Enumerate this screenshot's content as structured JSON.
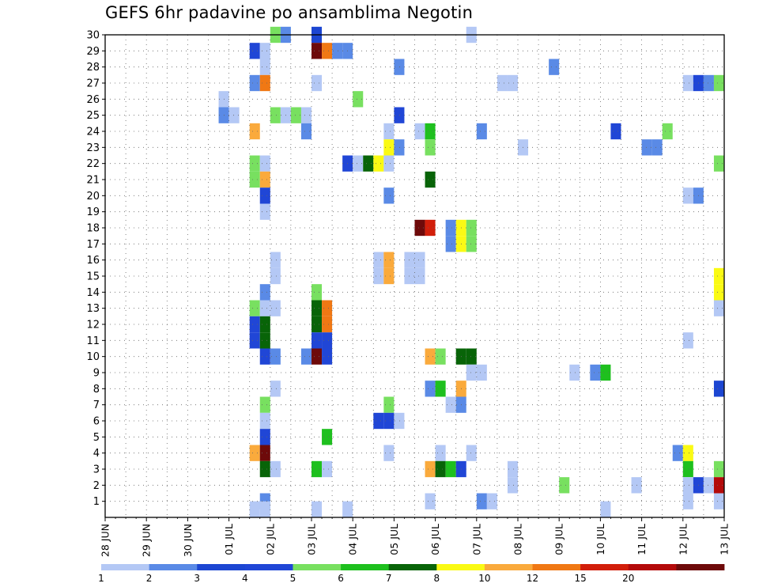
{
  "chart_data": {
    "type": "heatmap",
    "title": "GEFS 6hr padavine po ansamblima Negotin",
    "xlabel": "",
    "ylabel": "",
    "x_ticks": [
      "28 JUN",
      "29 JUN",
      "30 JUN",
      "01 JUL",
      "02 JUL",
      "03 JUL",
      "04 JUL",
      "05 JUL",
      "06 JUL",
      "07 JUL",
      "08 JUL",
      "09 JUL",
      "10 JUL",
      "11 JUL",
      "12 JUL",
      "13 JUL"
    ],
    "x_unit": "6-hour step from 28 JUN 00Z",
    "xlim": [
      0,
      60
    ],
    "y_ticks": [
      1,
      2,
      3,
      4,
      5,
      6,
      7,
      8,
      9,
      10,
      11,
      12,
      13,
      14,
      15,
      16,
      17,
      18,
      19,
      20,
      21,
      22,
      23,
      24,
      25,
      26,
      27,
      28,
      29,
      30
    ],
    "ylim": [
      0,
      30
    ],
    "grid": true,
    "legend_position": "bottom",
    "color_levels": [
      1,
      2,
      3,
      4,
      5,
      6,
      7,
      8,
      10,
      12,
      15,
      20
    ],
    "color_bins": [
      "#b4c8f5",
      "#5a8ae6",
      "#1c46d2",
      "#2046d6",
      "#78e060",
      "#1ec01e",
      "#086408",
      "#fafa14",
      "#faaa3c",
      "#f07814",
      "#d21e0a",
      "#b40a0a",
      "#6e0a0a"
    ],
    "cells": [
      {
        "m": 30,
        "x": 16,
        "c": 4
      },
      {
        "m": 30,
        "x": 17,
        "c": 1
      },
      {
        "m": 30,
        "x": 20,
        "c": 2
      },
      {
        "m": 30,
        "x": 35,
        "c": 0
      },
      {
        "m": 29,
        "x": 14,
        "c": 3
      },
      {
        "m": 29,
        "x": 15,
        "c": 0
      },
      {
        "m": 29,
        "x": 20,
        "c": 12
      },
      {
        "m": 29,
        "x": 21,
        "c": 9
      },
      {
        "m": 29,
        "x": 22,
        "c": 1
      },
      {
        "m": 29,
        "x": 23,
        "c": 1
      },
      {
        "m": 28,
        "x": 15,
        "c": 0
      },
      {
        "m": 28,
        "x": 28,
        "c": 1
      },
      {
        "m": 28,
        "x": 43,
        "c": 1
      },
      {
        "m": 27,
        "x": 14,
        "c": 1
      },
      {
        "m": 27,
        "x": 15,
        "c": 9
      },
      {
        "m": 27,
        "x": 20,
        "c": 0
      },
      {
        "m": 27,
        "x": 38,
        "c": 0
      },
      {
        "m": 27,
        "x": 39,
        "c": 0
      },
      {
        "m": 27,
        "x": 56,
        "c": 0
      },
      {
        "m": 27,
        "x": 57,
        "c": 3
      },
      {
        "m": 27,
        "x": 58,
        "c": 1
      },
      {
        "m": 27,
        "x": 59,
        "c": 4
      },
      {
        "m": 26,
        "x": 11,
        "c": 0
      },
      {
        "m": 26,
        "x": 24,
        "c": 4
      },
      {
        "m": 25,
        "x": 11,
        "c": 1
      },
      {
        "m": 25,
        "x": 12,
        "c": 0
      },
      {
        "m": 25,
        "x": 16,
        "c": 4
      },
      {
        "m": 25,
        "x": 17,
        "c": 0
      },
      {
        "m": 25,
        "x": 18,
        "c": 4
      },
      {
        "m": 25,
        "x": 19,
        "c": 0
      },
      {
        "m": 25,
        "x": 28,
        "c": 3
      },
      {
        "m": 24,
        "x": 14,
        "c": 8
      },
      {
        "m": 24,
        "x": 19,
        "c": 1
      },
      {
        "m": 24,
        "x": 27,
        "c": 0
      },
      {
        "m": 24,
        "x": 30,
        "c": 0
      },
      {
        "m": 24,
        "x": 31,
        "c": 5
      },
      {
        "m": 24,
        "x": 36,
        "c": 1
      },
      {
        "m": 24,
        "x": 49,
        "c": 3
      },
      {
        "m": 24,
        "x": 54,
        "c": 4
      },
      {
        "m": 23,
        "x": 27,
        "c": 7
      },
      {
        "m": 23,
        "x": 28,
        "c": 1
      },
      {
        "m": 23,
        "x": 31,
        "c": 4
      },
      {
        "m": 23,
        "x": 40,
        "c": 0
      },
      {
        "m": 23,
        "x": 52,
        "c": 1
      },
      {
        "m": 23,
        "x": 53,
        "c": 1
      },
      {
        "m": 22,
        "x": 14,
        "c": 4
      },
      {
        "m": 22,
        "x": 15,
        "c": 0
      },
      {
        "m": 22,
        "x": 23,
        "c": 3
      },
      {
        "m": 22,
        "x": 24,
        "c": 0
      },
      {
        "m": 22,
        "x": 25,
        "c": 6
      },
      {
        "m": 22,
        "x": 26,
        "c": 7
      },
      {
        "m": 22,
        "x": 27,
        "c": 0
      },
      {
        "m": 22,
        "x": 59,
        "c": 4
      },
      {
        "m": 21,
        "x": 14,
        "c": 4
      },
      {
        "m": 21,
        "x": 15,
        "c": 8
      },
      {
        "m": 21,
        "x": 31,
        "c": 6
      },
      {
        "m": 20,
        "x": 15,
        "c": 3
      },
      {
        "m": 20,
        "x": 27,
        "c": 1
      },
      {
        "m": 20,
        "x": 56,
        "c": 0
      },
      {
        "m": 20,
        "x": 57,
        "c": 1
      },
      {
        "m": 19,
        "x": 15,
        "c": 0
      },
      {
        "m": 18,
        "x": 30,
        "c": 12
      },
      {
        "m": 18,
        "x": 31,
        "c": 10
      },
      {
        "m": 18,
        "x": 33,
        "c": 1
      },
      {
        "m": 18,
        "x": 34,
        "c": 7
      },
      {
        "m": 18,
        "x": 35,
        "c": 4
      },
      {
        "m": 17,
        "x": 33,
        "c": 1
      },
      {
        "m": 17,
        "x": 34,
        "c": 7
      },
      {
        "m": 17,
        "x": 35,
        "c": 4
      },
      {
        "m": 16,
        "x": 16,
        "c": 0
      },
      {
        "m": 16,
        "x": 26,
        "c": 0
      },
      {
        "m": 16,
        "x": 27,
        "c": 8
      },
      {
        "m": 16,
        "x": 29,
        "c": 0
      },
      {
        "m": 16,
        "x": 30,
        "c": 0
      },
      {
        "m": 15,
        "x": 16,
        "c": 0
      },
      {
        "m": 15,
        "x": 26,
        "c": 0
      },
      {
        "m": 15,
        "x": 27,
        "c": 8
      },
      {
        "m": 15,
        "x": 29,
        "c": 0
      },
      {
        "m": 15,
        "x": 30,
        "c": 0
      },
      {
        "m": 15,
        "x": 59,
        "c": 7
      },
      {
        "m": 14,
        "x": 15,
        "c": 1
      },
      {
        "m": 14,
        "x": 20,
        "c": 4
      },
      {
        "m": 14,
        "x": 59,
        "c": 7
      },
      {
        "m": 13,
        "x": 14,
        "c": 4
      },
      {
        "m": 13,
        "x": 15,
        "c": 0
      },
      {
        "m": 13,
        "x": 16,
        "c": 0
      },
      {
        "m": 13,
        "x": 20,
        "c": 6
      },
      {
        "m": 13,
        "x": 21,
        "c": 9
      },
      {
        "m": 13,
        "x": 59,
        "c": 0
      },
      {
        "m": 12,
        "x": 14,
        "c": 3
      },
      {
        "m": 12,
        "x": 15,
        "c": 6
      },
      {
        "m": 12,
        "x": 20,
        "c": 6
      },
      {
        "m": 12,
        "x": 21,
        "c": 9
      },
      {
        "m": 11,
        "x": 14,
        "c": 3
      },
      {
        "m": 11,
        "x": 15,
        "c": 6
      },
      {
        "m": 11,
        "x": 20,
        "c": 3
      },
      {
        "m": 11,
        "x": 21,
        "c": 3
      },
      {
        "m": 11,
        "x": 56,
        "c": 0
      },
      {
        "m": 10,
        "x": 15,
        "c": 3
      },
      {
        "m": 10,
        "x": 16,
        "c": 1
      },
      {
        "m": 10,
        "x": 19,
        "c": 1
      },
      {
        "m": 10,
        "x": 20,
        "c": 12
      },
      {
        "m": 10,
        "x": 21,
        "c": 3
      },
      {
        "m": 10,
        "x": 31,
        "c": 8
      },
      {
        "m": 10,
        "x": 32,
        "c": 4
      },
      {
        "m": 10,
        "x": 34,
        "c": 6
      },
      {
        "m": 10,
        "x": 35,
        "c": 6
      },
      {
        "m": 9,
        "x": 35,
        "c": 0
      },
      {
        "m": 9,
        "x": 36,
        "c": 0
      },
      {
        "m": 9,
        "x": 45,
        "c": 0
      },
      {
        "m": 9,
        "x": 47,
        "c": 1
      },
      {
        "m": 9,
        "x": 48,
        "c": 5
      },
      {
        "m": 8,
        "x": 16,
        "c": 0
      },
      {
        "m": 8,
        "x": 31,
        "c": 1
      },
      {
        "m": 8,
        "x": 32,
        "c": 5
      },
      {
        "m": 8,
        "x": 34,
        "c": 8
      },
      {
        "m": 8,
        "x": 59,
        "c": 2
      },
      {
        "m": 7,
        "x": 15,
        "c": 4
      },
      {
        "m": 7,
        "x": 27,
        "c": 4
      },
      {
        "m": 7,
        "x": 33,
        "c": 0
      },
      {
        "m": 7,
        "x": 34,
        "c": 1
      },
      {
        "m": 6,
        "x": 15,
        "c": 0
      },
      {
        "m": 6,
        "x": 26,
        "c": 3
      },
      {
        "m": 6,
        "x": 27,
        "c": 3
      },
      {
        "m": 6,
        "x": 28,
        "c": 0
      },
      {
        "m": 5,
        "x": 15,
        "c": 3
      },
      {
        "m": 5,
        "x": 21,
        "c": 5
      },
      {
        "m": 4,
        "x": 14,
        "c": 8
      },
      {
        "m": 4,
        "x": 15,
        "c": 12
      },
      {
        "m": 4,
        "x": 27,
        "c": 0
      },
      {
        "m": 4,
        "x": 32,
        "c": 0
      },
      {
        "m": 4,
        "x": 35,
        "c": 0
      },
      {
        "m": 4,
        "x": 55,
        "c": 1
      },
      {
        "m": 4,
        "x": 56,
        "c": 7
      },
      {
        "m": 3,
        "x": 15,
        "c": 6
      },
      {
        "m": 3,
        "x": 16,
        "c": 0
      },
      {
        "m": 3,
        "x": 20,
        "c": 5
      },
      {
        "m": 3,
        "x": 21,
        "c": 0
      },
      {
        "m": 3,
        "x": 31,
        "c": 8
      },
      {
        "m": 3,
        "x": 32,
        "c": 6
      },
      {
        "m": 3,
        "x": 33,
        "c": 5
      },
      {
        "m": 3,
        "x": 34,
        "c": 3
      },
      {
        "m": 3,
        "x": 39,
        "c": 0
      },
      {
        "m": 3,
        "x": 56,
        "c": 5
      },
      {
        "m": 3,
        "x": 59,
        "c": 4
      },
      {
        "m": 2,
        "x": 39,
        "c": 0
      },
      {
        "m": 2,
        "x": 44,
        "c": 4
      },
      {
        "m": 2,
        "x": 51,
        "c": 0
      },
      {
        "m": 2,
        "x": 56,
        "c": 0
      },
      {
        "m": 2,
        "x": 57,
        "c": 3
      },
      {
        "m": 2,
        "x": 58,
        "c": 0
      },
      {
        "m": 2,
        "x": 59,
        "c": 11
      },
      {
        "m": 1,
        "x": 15,
        "c": 1
      },
      {
        "m": 1,
        "x": 31,
        "c": 0
      },
      {
        "m": 1,
        "x": 36,
        "c": 1
      },
      {
        "m": 1,
        "x": 37,
        "c": 0
      },
      {
        "m": 1,
        "x": 56,
        "c": 0
      },
      {
        "m": 1,
        "x": 59,
        "c": 0
      },
      {
        "m": 0.5,
        "x": 14,
        "c": 0
      },
      {
        "m": 0.5,
        "x": 15,
        "c": 0
      },
      {
        "m": 0.5,
        "x": 20,
        "c": 0
      },
      {
        "m": 0.5,
        "x": 23,
        "c": 0
      },
      {
        "m": 0.5,
        "x": 48,
        "c": 0
      }
    ]
  }
}
